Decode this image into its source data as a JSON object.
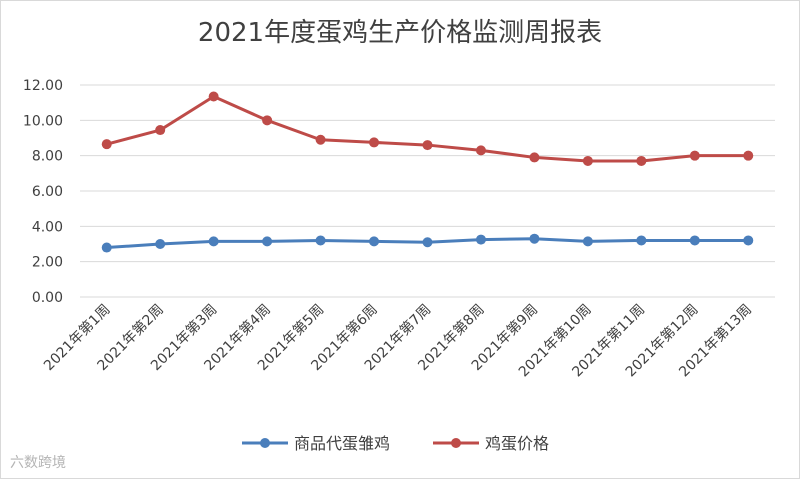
{
  "chart_data": {
    "type": "line",
    "title": "2021年度蛋鸡生产价格监测周报表",
    "categories": [
      "2021年第1周",
      "2021年第2周",
      "2021年第3周",
      "2021年第4周",
      "2021年第5周",
      "2021年第6周",
      "2021年第7周",
      "2021年第8周",
      "2021年第9周",
      "2021年第10周",
      "2021年第11周",
      "2021年第12周",
      "2021年第13周"
    ],
    "y_ticks": [
      "0.00",
      "2.00",
      "4.00",
      "6.00",
      "8.00",
      "10.00",
      "12.00"
    ],
    "ylim": [
      0,
      12
    ],
    "grid": true,
    "legend_position": "bottom",
    "series": [
      {
        "name": "商品代蛋雏鸡",
        "color": "#4a7ebb",
        "values": [
          2.8,
          3.0,
          3.15,
          3.15,
          3.2,
          3.15,
          3.1,
          3.25,
          3.3,
          3.15,
          3.2,
          3.2,
          3.2
        ]
      },
      {
        "name": "鸡蛋价格",
        "color": "#be4b48",
        "values": [
          8.65,
          9.45,
          11.35,
          10.0,
          8.9,
          8.75,
          8.6,
          8.3,
          7.9,
          7.7,
          7.7,
          8.0,
          8.0
        ]
      }
    ]
  },
  "watermark": "六数跨境"
}
